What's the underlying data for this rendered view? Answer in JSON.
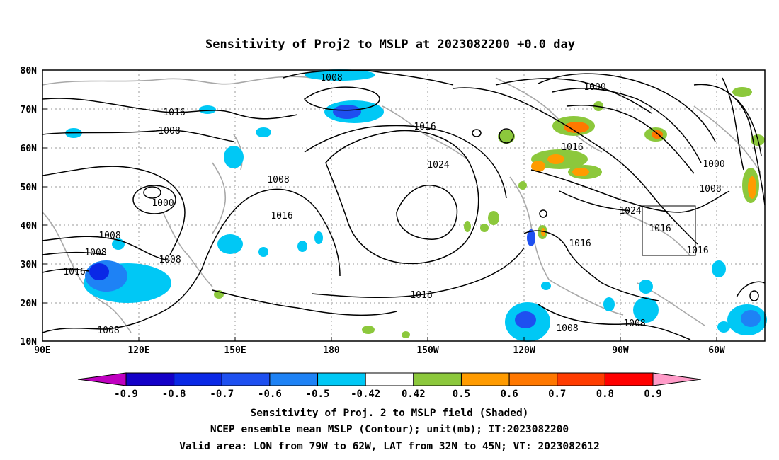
{
  "title": "Sensitivity of Proj2 to MSLP at 2023082200 +0.0 day",
  "lat_labels": [
    "80N",
    "70N",
    "60N",
    "50N",
    "40N",
    "30N",
    "20N",
    "10N"
  ],
  "lon_labels": [
    "90E",
    "120E",
    "150E",
    "180",
    "150W",
    "120W",
    "90W",
    "60W"
  ],
  "contour_labels": {
    "c1008a": "1008",
    "c1016a": "1016",
    "c1008b": "1008",
    "c1000a": "1000",
    "c1008c": "1008",
    "c1008d": "1008",
    "c1016b": "1016",
    "c1008e": "1008",
    "c1008f": "1008",
    "c1016c": "1016",
    "c1008g": "1008",
    "c1016d": "1016",
    "c1024a": "1024",
    "c1016e": "1016",
    "c1000b": "1000",
    "c1016f": "1016",
    "c1000c": "1000",
    "c1008h": "1008",
    "c1024b": "1024",
    "c1016g": "1016",
    "c1016h": "1016",
    "c1016i": "1016",
    "c1008i": "1008",
    "c1008j": "1008"
  },
  "colorbar": {
    "labels": [
      "-0.9",
      "-0.8",
      "-0.7",
      "-0.6",
      "-0.5",
      "-0.42",
      "0.42",
      "0.5",
      "0.6",
      "0.7",
      "0.8",
      "0.9"
    ],
    "colors": [
      "#c000c0",
      "#1400c8",
      "#0a28e6",
      "#1e50f0",
      "#1e82f5",
      "#00c8f5",
      "#ffffff",
      "#8cc83c",
      "#ff9b00",
      "#ff7800",
      "#ff3c00",
      "#ff0000",
      "#ff9bc8"
    ]
  },
  "caption": {
    "line1": "Sensitivity of Proj. 2 to MSLP field (Shaded)",
    "line2": "NCEP ensemble mean MSLP (Contour); unit(mb); IT:2023082200",
    "line3": "Valid area: LON from 79W to 62W, LAT from 32N to 45N; VT: 2023082612"
  }
}
